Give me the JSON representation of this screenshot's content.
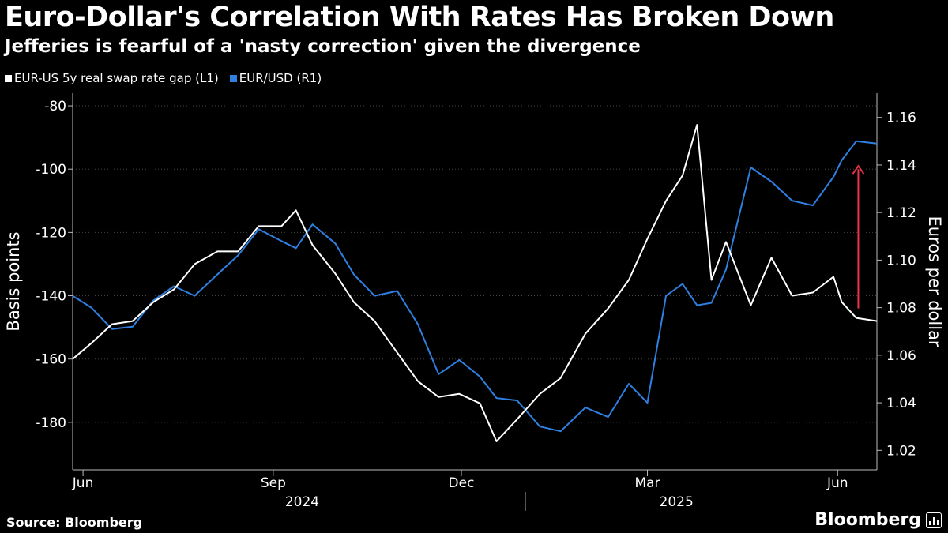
{
  "title": "Euro-Dollar's Correlation With Rates Has Broken Down",
  "subtitle": "Jefferies is fearful of a 'nasty correction' given the divergence",
  "source": "Source: Bloomberg",
  "brand": "Bloomberg",
  "colors": {
    "background": "#000000",
    "rate_gap": "#ffffff",
    "eurusd": "#2f7fe0",
    "arrow": "#e8354a",
    "grid": "#444444"
  },
  "chart_data": {
    "type": "line",
    "legend_position": "top-left",
    "grid": true,
    "x_range": [
      "2024-05-27",
      "2025-06-20"
    ],
    "x_tick_labels": [
      {
        "label": "Jun",
        "date": "2024-06-01"
      },
      {
        "label": "Sep",
        "date": "2024-09-01"
      },
      {
        "label": "Dec",
        "date": "2024-12-01"
      },
      {
        "label": "Mar",
        "date": "2025-03-01"
      },
      {
        "label": "Jun",
        "date": "2025-06-01"
      }
    ],
    "year_labels": [
      {
        "label": "2024",
        "date": "2024-09-15"
      },
      {
        "label": "2025",
        "date": "2025-03-15"
      }
    ],
    "left_axis": {
      "label": "Basis points",
      "ylim": [
        -195,
        -76
      ],
      "ticks": [
        -80,
        -100,
        -120,
        -140,
        -160,
        -180
      ]
    },
    "right_axis": {
      "label": "Euros per dollar",
      "ylim": [
        1.0118,
        1.1702
      ],
      "ticks": [
        1.16,
        1.14,
        1.12,
        1.1,
        1.08,
        1.06,
        1.04,
        1.02
      ],
      "tick_labels": [
        "1.16",
        "1.14",
        "1.12",
        "1.10",
        "1.08",
        "1.06",
        "1.04",
        "1.02"
      ]
    },
    "annotation": {
      "type": "arrow",
      "date": "2025-06-11",
      "from_bp": -144,
      "to_bp": -99
    },
    "series": [
      {
        "name": "EUR-US 5y real swap rate gap (L1)",
        "axis": "left",
        "points": [
          [
            "2024-05-27",
            -160
          ],
          [
            "2024-06-05",
            -155
          ],
          [
            "2024-06-15",
            -149
          ],
          [
            "2024-06-25",
            -148
          ],
          [
            "2024-07-05",
            -142
          ],
          [
            "2024-07-15",
            -138
          ],
          [
            "2024-07-25",
            -130
          ],
          [
            "2024-08-05",
            -126
          ],
          [
            "2024-08-15",
            -126
          ],
          [
            "2024-08-25",
            -118
          ],
          [
            "2024-09-05",
            -118
          ],
          [
            "2024-09-12",
            -113
          ],
          [
            "2024-09-20",
            -124
          ],
          [
            "2024-10-01",
            -133
          ],
          [
            "2024-10-10",
            -142
          ],
          [
            "2024-10-20",
            -148
          ],
          [
            "2024-10-31",
            -158
          ],
          [
            "2024-11-10",
            -167
          ],
          [
            "2024-11-20",
            -172
          ],
          [
            "2024-11-30",
            -171
          ],
          [
            "2024-12-10",
            -174
          ],
          [
            "2024-12-18",
            -186
          ],
          [
            "2024-12-28",
            -179
          ],
          [
            "2025-01-08",
            -171
          ],
          [
            "2025-01-18",
            -166
          ],
          [
            "2025-01-30",
            -152
          ],
          [
            "2025-02-10",
            -144
          ],
          [
            "2025-02-20",
            -135
          ],
          [
            "2025-03-01",
            -122
          ],
          [
            "2025-03-10",
            -110
          ],
          [
            "2025-03-18",
            -102
          ],
          [
            "2025-03-25",
            -86
          ],
          [
            "2025-04-01",
            -135
          ],
          [
            "2025-04-08",
            -123
          ],
          [
            "2025-04-20",
            -143
          ],
          [
            "2025-04-30",
            -128
          ],
          [
            "2025-05-10",
            -140
          ],
          [
            "2025-05-20",
            -139
          ],
          [
            "2025-05-30",
            -134
          ],
          [
            "2025-06-03",
            -142
          ],
          [
            "2025-06-10",
            -147
          ],
          [
            "2025-06-20",
            -148
          ]
        ]
      },
      {
        "name": "EUR/USD (R1)",
        "axis": "right",
        "points": [
          [
            "2024-05-27",
            1.085
          ],
          [
            "2024-06-05",
            1.08
          ],
          [
            "2024-06-15",
            1.071
          ],
          [
            "2024-06-25",
            1.072
          ],
          [
            "2024-07-05",
            1.083
          ],
          [
            "2024-07-15",
            1.089
          ],
          [
            "2024-07-25",
            1.085
          ],
          [
            "2024-08-05",
            1.094
          ],
          [
            "2024-08-15",
            1.102
          ],
          [
            "2024-08-25",
            1.113
          ],
          [
            "2024-09-05",
            1.108
          ],
          [
            "2024-09-12",
            1.105
          ],
          [
            "2024-09-20",
            1.115
          ],
          [
            "2024-10-01",
            1.107
          ],
          [
            "2024-10-10",
            1.094
          ],
          [
            "2024-10-20",
            1.085
          ],
          [
            "2024-10-31",
            1.087
          ],
          [
            "2024-11-10",
            1.073
          ],
          [
            "2024-11-20",
            1.052
          ],
          [
            "2024-11-30",
            1.058
          ],
          [
            "2024-12-10",
            1.051
          ],
          [
            "2024-12-18",
            1.042
          ],
          [
            "2024-12-28",
            1.041
          ],
          [
            "2025-01-08",
            1.03
          ],
          [
            "2025-01-18",
            1.028
          ],
          [
            "2025-01-30",
            1.038
          ],
          [
            "2025-02-10",
            1.034
          ],
          [
            "2025-02-20",
            1.048
          ],
          [
            "2025-03-01",
            1.04
          ],
          [
            "2025-03-10",
            1.085
          ],
          [
            "2025-03-18",
            1.09
          ],
          [
            "2025-03-25",
            1.081
          ],
          [
            "2025-04-01",
            1.082
          ],
          [
            "2025-04-08",
            1.096
          ],
          [
            "2025-04-20",
            1.139
          ],
          [
            "2025-04-30",
            1.133
          ],
          [
            "2025-05-10",
            1.125
          ],
          [
            "2025-05-20",
            1.123
          ],
          [
            "2025-05-30",
            1.135
          ],
          [
            "2025-06-03",
            1.142
          ],
          [
            "2025-06-10",
            1.15
          ],
          [
            "2025-06-20",
            1.149
          ]
        ]
      }
    ]
  }
}
